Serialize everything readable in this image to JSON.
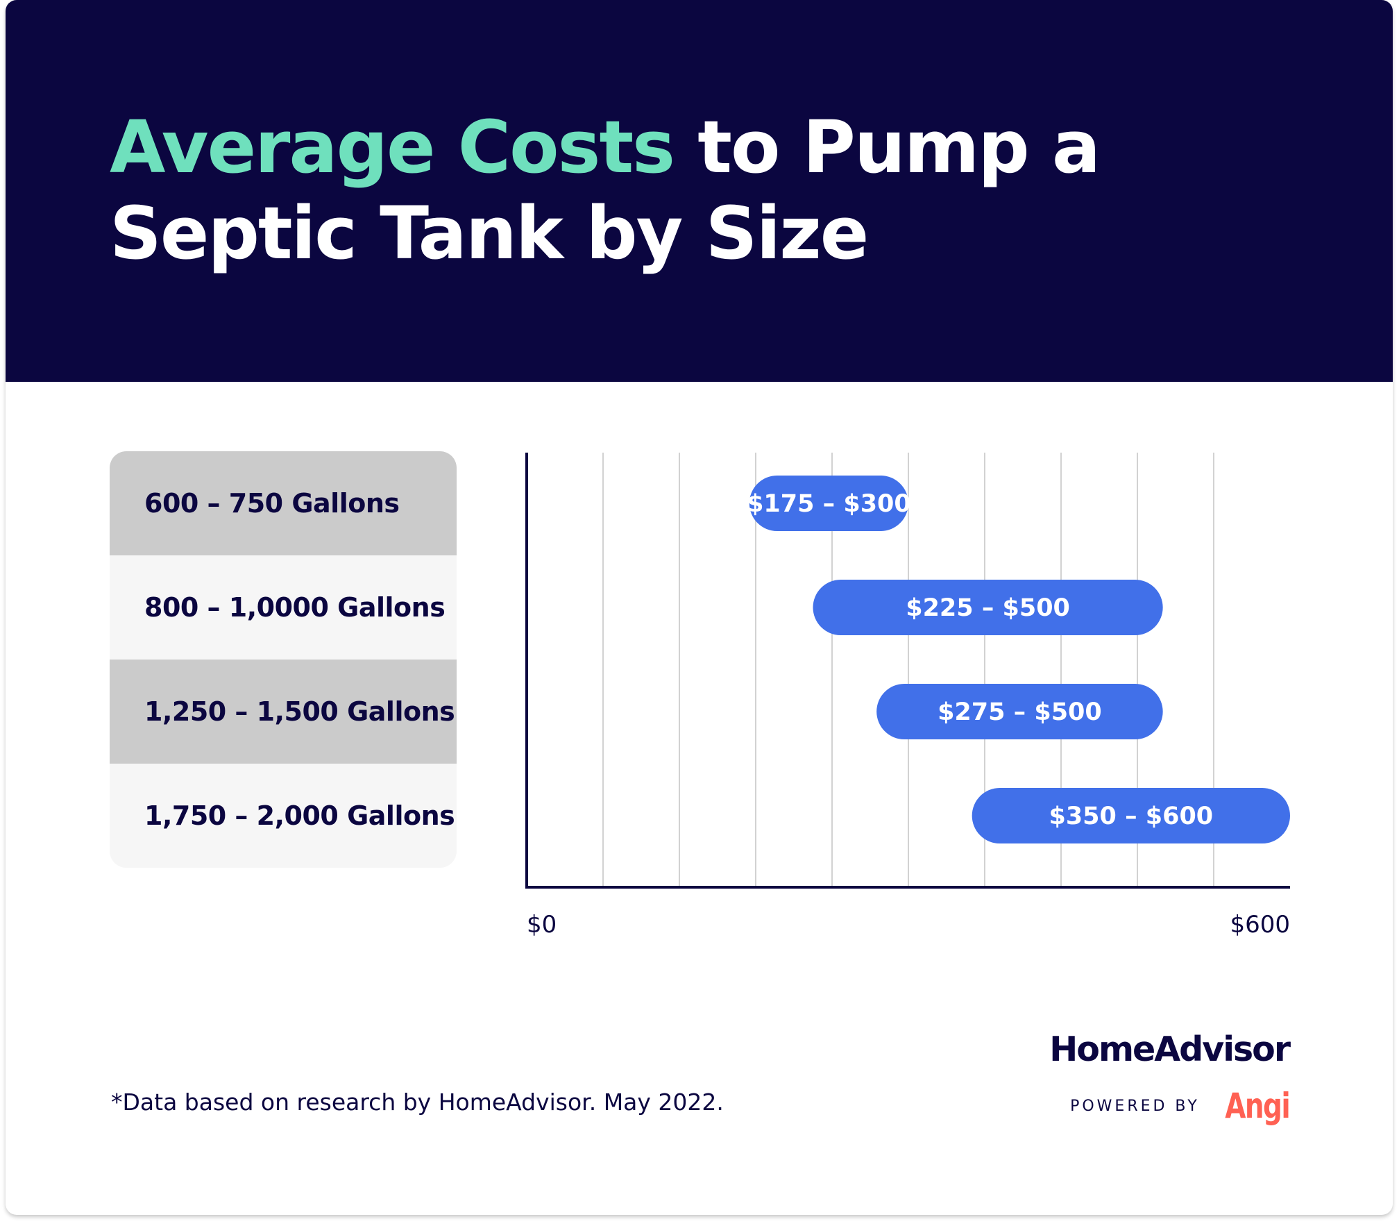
{
  "title": {
    "highlight": "Average Costs",
    "rest": " to Pump a Septic Tank by Size"
  },
  "chart_data": {
    "type": "bar",
    "orientation": "horizontal",
    "variant": "floating-range",
    "categories": [
      "600 – 750 Gallons",
      "800 – 1,0000 Gallons",
      "1,250 – 1,500 Gallons",
      "1,750 – 2,000 Gallons"
    ],
    "ranges": [
      {
        "low": 175,
        "high": 300,
        "label": "$175 – $300"
      },
      {
        "low": 225,
        "high": 500,
        "label": "$225 – $500"
      },
      {
        "low": 275,
        "high": 500,
        "label": "$275 – $500"
      },
      {
        "low": 350,
        "high": 600,
        "label": "$350 – $600"
      }
    ],
    "xlim": [
      0,
      600
    ],
    "x_tick_labels": [
      "$0",
      "$600"
    ],
    "grid": true,
    "colors": {
      "bar": "#4170e9",
      "bar_text": "#ffffff",
      "axis": "#0b0640",
      "grid": "#d2d2d2",
      "label_row_dark": "#cbcbcb",
      "label_row_light": "#f6f6f6"
    }
  },
  "footnote": "*Data based on research by HomeAdvisor. May 2022.",
  "brand": {
    "name": "HomeAdvisor",
    "powered_by": "POWERED BY",
    "partner": "Angi"
  },
  "colors": {
    "header_bg": "#0b0640",
    "title_accent": "#6fe0bd",
    "title_text": "#ffffff",
    "angi": "#ff6153"
  }
}
